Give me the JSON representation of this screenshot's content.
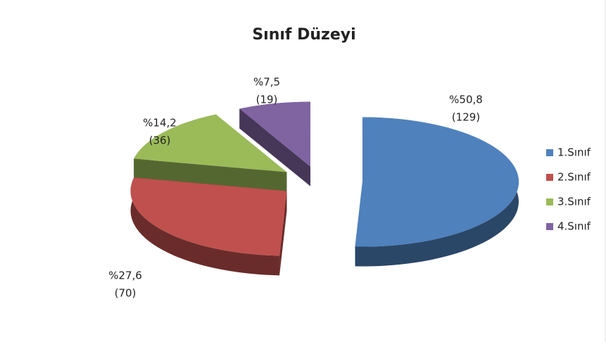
{
  "chart_data": {
    "type": "pie3d",
    "title": "Sınıf Düzeyi",
    "categories": [
      "1.Sınıf",
      "2.Sınıf",
      "3.Sınıf",
      "4.Sınıf"
    ],
    "values": [
      50.8,
      27.6,
      14.2,
      7.5
    ],
    "value_labels": [
      "%50,8",
      "%27,6",
      "%14,2",
      "%7,5"
    ],
    "counts": [
      129,
      70,
      36,
      19
    ],
    "count_labels": [
      "(129)",
      "(70)",
      "(36)",
      "(19)"
    ],
    "colors": [
      "#4f81bd",
      "#c0504d",
      "#9bbb59",
      "#8064a2"
    ],
    "legend": "right"
  }
}
